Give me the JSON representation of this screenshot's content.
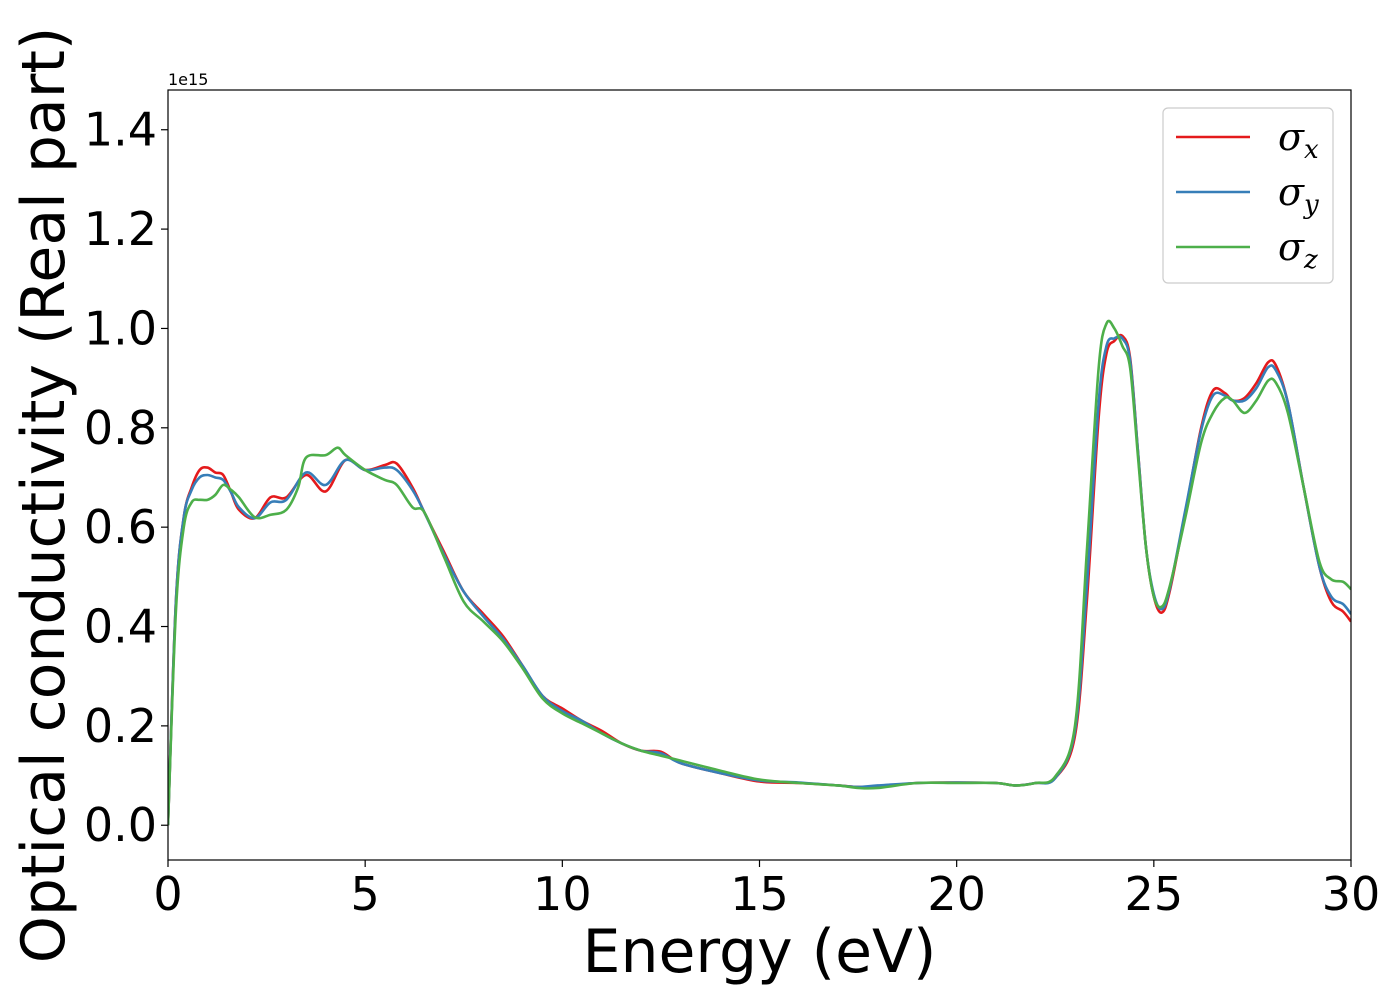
{
  "chart_data": {
    "type": "line",
    "xlabel": "Energy (eV)",
    "ylabel": "Optical conductivity (Real part)",
    "y_offset_label": "1e15",
    "xlim": [
      0,
      30
    ],
    "ylim": [
      -0.07,
      1.48
    ],
    "x_ticks": [
      0,
      5,
      10,
      15,
      20,
      25,
      30
    ],
    "x_tick_labels": [
      "0",
      "5",
      "10",
      "15",
      "20",
      "25",
      "30"
    ],
    "y_ticks": [
      0.0,
      0.2,
      0.4,
      0.6,
      0.8,
      1.0,
      1.2,
      1.4
    ],
    "y_tick_labels": [
      "0.0",
      "0.2",
      "0.4",
      "0.6",
      "0.8",
      "1.0",
      "1.2",
      "1.4"
    ],
    "grid": false,
    "legend": {
      "position": "top-right"
    },
    "series": [
      {
        "name": "σx",
        "symbol": "σ",
        "subscript": "x",
        "color": "#e41a1c",
        "points": [
          [
            0,
            0
          ],
          [
            0.2,
            0.45
          ],
          [
            0.4,
            0.62
          ],
          [
            0.6,
            0.68
          ],
          [
            0.8,
            0.715
          ],
          [
            1.0,
            0.72
          ],
          [
            1.2,
            0.71
          ],
          [
            1.4,
            0.705
          ],
          [
            1.6,
            0.67
          ],
          [
            1.8,
            0.635
          ],
          [
            2.2,
            0.618
          ],
          [
            2.6,
            0.66
          ],
          [
            3.0,
            0.66
          ],
          [
            3.5,
            0.705
          ],
          [
            4.0,
            0.672
          ],
          [
            4.5,
            0.735
          ],
          [
            5.0,
            0.715
          ],
          [
            5.5,
            0.725
          ],
          [
            5.8,
            0.728
          ],
          [
            6.2,
            0.68
          ],
          [
            6.5,
            0.63
          ],
          [
            7.0,
            0.55
          ],
          [
            7.5,
            0.47
          ],
          [
            8.0,
            0.425
          ],
          [
            8.5,
            0.38
          ],
          [
            9.0,
            0.32
          ],
          [
            9.5,
            0.26
          ],
          [
            10.0,
            0.235
          ],
          [
            10.5,
            0.21
          ],
          [
            11.0,
            0.19
          ],
          [
            11.5,
            0.165
          ],
          [
            12.0,
            0.15
          ],
          [
            12.5,
            0.148
          ],
          [
            13.0,
            0.125
          ],
          [
            14.0,
            0.105
          ],
          [
            15.0,
            0.088
          ],
          [
            16.0,
            0.085
          ],
          [
            17.0,
            0.08
          ],
          [
            17.5,
            0.077
          ],
          [
            18.0,
            0.078
          ],
          [
            19.0,
            0.085
          ],
          [
            20.0,
            0.086
          ],
          [
            21.0,
            0.085
          ],
          [
            21.5,
            0.08
          ],
          [
            22.0,
            0.085
          ],
          [
            22.5,
            0.095
          ],
          [
            23.0,
            0.18
          ],
          [
            23.3,
            0.45
          ],
          [
            23.6,
            0.82
          ],
          [
            23.8,
            0.95
          ],
          [
            24.0,
            0.975
          ],
          [
            24.2,
            0.985
          ],
          [
            24.4,
            0.94
          ],
          [
            24.6,
            0.75
          ],
          [
            24.8,
            0.56
          ],
          [
            25.0,
            0.46
          ],
          [
            25.2,
            0.428
          ],
          [
            25.4,
            0.47
          ],
          [
            25.8,
            0.63
          ],
          [
            26.2,
            0.8
          ],
          [
            26.5,
            0.875
          ],
          [
            26.8,
            0.87
          ],
          [
            27.0,
            0.855
          ],
          [
            27.3,
            0.86
          ],
          [
            27.6,
            0.89
          ],
          [
            27.9,
            0.932
          ],
          [
            28.1,
            0.925
          ],
          [
            28.4,
            0.85
          ],
          [
            28.8,
            0.68
          ],
          [
            29.2,
            0.52
          ],
          [
            29.5,
            0.45
          ],
          [
            29.8,
            0.43
          ],
          [
            30.0,
            0.41
          ]
        ]
      },
      {
        "name": "σy",
        "symbol": "σ",
        "subscript": "y",
        "color": "#377eb8",
        "points": [
          [
            0,
            0
          ],
          [
            0.2,
            0.45
          ],
          [
            0.4,
            0.62
          ],
          [
            0.6,
            0.675
          ],
          [
            0.8,
            0.7
          ],
          [
            1.0,
            0.705
          ],
          [
            1.2,
            0.7
          ],
          [
            1.4,
            0.695
          ],
          [
            1.6,
            0.67
          ],
          [
            1.8,
            0.64
          ],
          [
            2.2,
            0.618
          ],
          [
            2.6,
            0.65
          ],
          [
            3.0,
            0.655
          ],
          [
            3.5,
            0.71
          ],
          [
            4.0,
            0.685
          ],
          [
            4.5,
            0.735
          ],
          [
            5.0,
            0.715
          ],
          [
            5.5,
            0.72
          ],
          [
            5.8,
            0.715
          ],
          [
            6.2,
            0.675
          ],
          [
            6.5,
            0.63
          ],
          [
            7.0,
            0.545
          ],
          [
            7.5,
            0.47
          ],
          [
            8.0,
            0.42
          ],
          [
            8.5,
            0.375
          ],
          [
            9.0,
            0.32
          ],
          [
            9.5,
            0.26
          ],
          [
            10.0,
            0.23
          ],
          [
            10.5,
            0.21
          ],
          [
            11.0,
            0.185
          ],
          [
            11.5,
            0.165
          ],
          [
            12.0,
            0.15
          ],
          [
            12.5,
            0.145
          ],
          [
            13.0,
            0.125
          ],
          [
            14.0,
            0.105
          ],
          [
            15.0,
            0.09
          ],
          [
            16.0,
            0.086
          ],
          [
            17.0,
            0.08
          ],
          [
            17.5,
            0.077
          ],
          [
            18.0,
            0.08
          ],
          [
            19.0,
            0.085
          ],
          [
            20.0,
            0.086
          ],
          [
            21.0,
            0.085
          ],
          [
            21.5,
            0.08
          ],
          [
            22.0,
            0.085
          ],
          [
            22.5,
            0.095
          ],
          [
            23.0,
            0.19
          ],
          [
            23.3,
            0.48
          ],
          [
            23.6,
            0.85
          ],
          [
            23.8,
            0.965
          ],
          [
            24.0,
            0.98
          ],
          [
            24.2,
            0.98
          ],
          [
            24.4,
            0.935
          ],
          [
            24.6,
            0.75
          ],
          [
            24.8,
            0.56
          ],
          [
            25.0,
            0.465
          ],
          [
            25.2,
            0.435
          ],
          [
            25.4,
            0.475
          ],
          [
            25.8,
            0.635
          ],
          [
            26.2,
            0.795
          ],
          [
            26.5,
            0.865
          ],
          [
            26.8,
            0.865
          ],
          [
            27.0,
            0.855
          ],
          [
            27.3,
            0.855
          ],
          [
            27.6,
            0.88
          ],
          [
            27.9,
            0.922
          ],
          [
            28.1,
            0.915
          ],
          [
            28.4,
            0.85
          ],
          [
            28.8,
            0.68
          ],
          [
            29.2,
            0.52
          ],
          [
            29.5,
            0.46
          ],
          [
            29.8,
            0.445
          ],
          [
            30.0,
            0.425
          ]
        ]
      },
      {
        "name": "σz",
        "symbol": "σ",
        "subscript": "z",
        "color": "#4daf4a",
        "points": [
          [
            0,
            0
          ],
          [
            0.2,
            0.43
          ],
          [
            0.4,
            0.6
          ],
          [
            0.6,
            0.65
          ],
          [
            0.8,
            0.655
          ],
          [
            1.0,
            0.655
          ],
          [
            1.2,
            0.665
          ],
          [
            1.4,
            0.685
          ],
          [
            1.6,
            0.675
          ],
          [
            1.8,
            0.66
          ],
          [
            2.2,
            0.62
          ],
          [
            2.6,
            0.625
          ],
          [
            3.0,
            0.635
          ],
          [
            3.3,
            0.68
          ],
          [
            3.5,
            0.74
          ],
          [
            4.0,
            0.745
          ],
          [
            4.3,
            0.76
          ],
          [
            4.5,
            0.745
          ],
          [
            5.0,
            0.715
          ],
          [
            5.5,
            0.695
          ],
          [
            5.8,
            0.685
          ],
          [
            6.2,
            0.64
          ],
          [
            6.5,
            0.63
          ],
          [
            7.0,
            0.54
          ],
          [
            7.5,
            0.45
          ],
          [
            8.0,
            0.41
          ],
          [
            8.5,
            0.37
          ],
          [
            9.0,
            0.315
          ],
          [
            9.5,
            0.255
          ],
          [
            10.0,
            0.225
          ],
          [
            10.5,
            0.205
          ],
          [
            11.0,
            0.185
          ],
          [
            11.5,
            0.165
          ],
          [
            12.0,
            0.15
          ],
          [
            12.5,
            0.14
          ],
          [
            13.0,
            0.13
          ],
          [
            14.0,
            0.11
          ],
          [
            15.0,
            0.092
          ],
          [
            16.0,
            0.085
          ],
          [
            17.0,
            0.08
          ],
          [
            17.5,
            0.075
          ],
          [
            18.0,
            0.075
          ],
          [
            19.0,
            0.085
          ],
          [
            20.0,
            0.085
          ],
          [
            21.0,
            0.085
          ],
          [
            21.5,
            0.08
          ],
          [
            22.0,
            0.085
          ],
          [
            22.5,
            0.098
          ],
          [
            23.0,
            0.2
          ],
          [
            23.3,
            0.55
          ],
          [
            23.6,
            0.92
          ],
          [
            23.8,
            1.01
          ],
          [
            24.0,
            1.0
          ],
          [
            24.2,
            0.965
          ],
          [
            24.4,
            0.92
          ],
          [
            24.6,
            0.74
          ],
          [
            24.8,
            0.56
          ],
          [
            25.0,
            0.46
          ],
          [
            25.2,
            0.44
          ],
          [
            25.4,
            0.48
          ],
          [
            25.8,
            0.62
          ],
          [
            26.2,
            0.77
          ],
          [
            26.5,
            0.83
          ],
          [
            26.8,
            0.86
          ],
          [
            27.0,
            0.855
          ],
          [
            27.3,
            0.83
          ],
          [
            27.6,
            0.855
          ],
          [
            27.9,
            0.895
          ],
          [
            28.1,
            0.89
          ],
          [
            28.4,
            0.83
          ],
          [
            28.8,
            0.68
          ],
          [
            29.2,
            0.53
          ],
          [
            29.5,
            0.495
          ],
          [
            29.8,
            0.49
          ],
          [
            30.0,
            0.475
          ]
        ]
      }
    ]
  }
}
